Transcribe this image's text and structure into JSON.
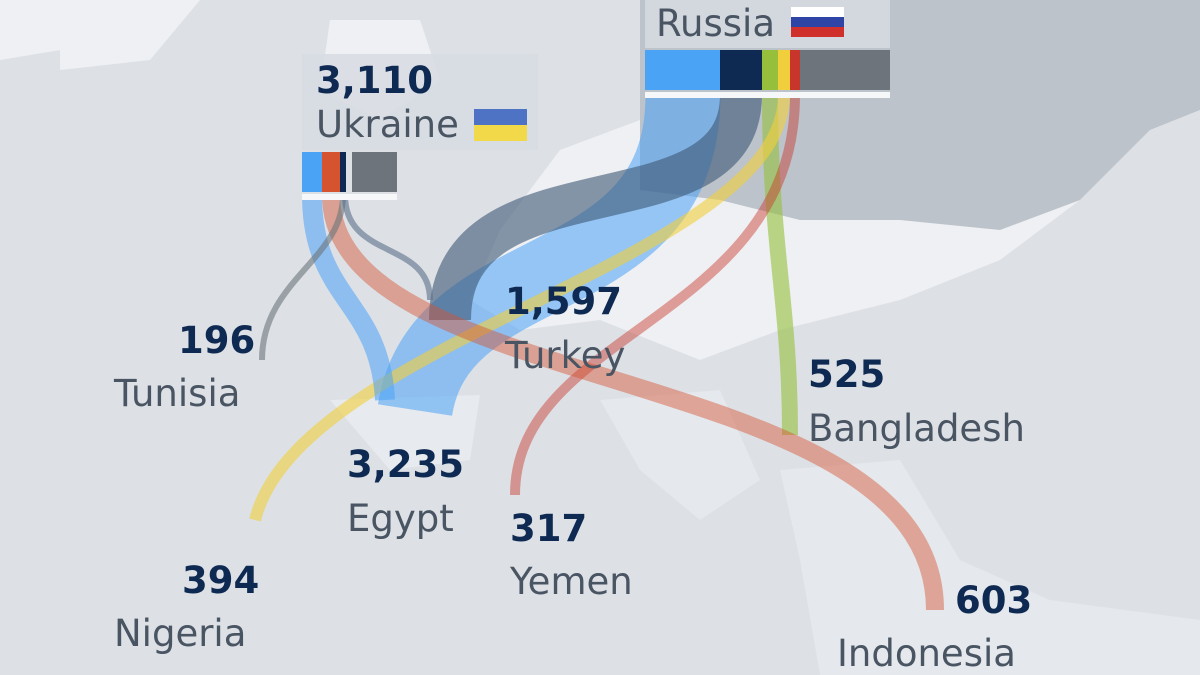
{
  "colors": {
    "sea": "#eef0f3",
    "land": "#dde1e6",
    "russia_land": "#bcc3cb",
    "blue": "#4aa3f5",
    "navy": "#0f2a52",
    "green": "#96c03c",
    "yellow": "#f1cf3c",
    "red": "#c8352b",
    "orange": "#d5532e",
    "gray": "#6d747c"
  },
  "exporters": [
    {
      "name": "Russia",
      "flag": "russia-flag-icon"
    },
    {
      "name": "Ukraine",
      "value": "3,110",
      "flag": "ukraine-flag-icon"
    }
  ],
  "importers": [
    {
      "name": "Turkey",
      "value": "1,597"
    },
    {
      "name": "Tunisia",
      "value": "196"
    },
    {
      "name": "Egypt",
      "value": "3,235"
    },
    {
      "name": "Bangladesh",
      "value": "525"
    },
    {
      "name": "Yemen",
      "value": "317"
    },
    {
      "name": "Nigeria",
      "value": "394"
    },
    {
      "name": "Indonesia",
      "value": "603"
    }
  ]
}
